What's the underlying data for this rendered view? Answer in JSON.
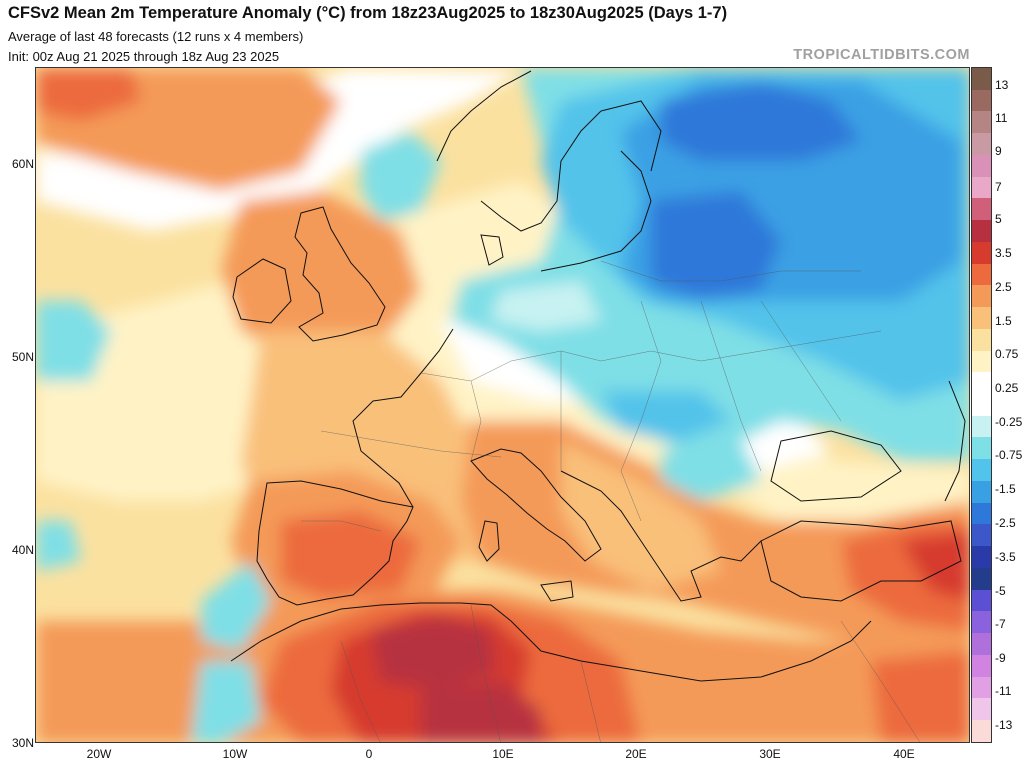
{
  "header": {
    "title": "CFSv2 Mean 2m Temperature Anomaly (°C) from 18z23Aug2025 to 18z30Aug2025 (Days 1-7)",
    "subtitle": "Average of last 48 forecasts (12 runs x 4 members)",
    "init": "Init: 00z Aug 21 2025 through 18z Aug 23 2025",
    "brand": "TROPICALTIDBITS.COM"
  },
  "axes": {
    "lat_labels": [
      "60N",
      "50N",
      "40N",
      "30N"
    ],
    "lon_labels": [
      "20W",
      "10W",
      "0",
      "10E",
      "20E",
      "30E",
      "40E"
    ]
  },
  "colorbar": {
    "labels": [
      "13",
      "11",
      "9",
      "7",
      "5",
      "3.5",
      "2.5",
      "1.5",
      "0.75",
      "0.25",
      "-0.25",
      "-0.75",
      "-1.5",
      "-2.5",
      "-3.5",
      "-5",
      "-7",
      "-9",
      "-11",
      "-13"
    ],
    "colors": [
      "#7a5a48",
      "#9a6a60",
      "#b48582",
      "#c99aa3",
      "#d991b7",
      "#e9a8c8",
      "#d0607a",
      "#b7303f",
      "#d63b2e",
      "#ec6a3d",
      "#f49a58",
      "#f9c07a",
      "#fbe1a0",
      "#fff3c6",
      "#ffffff",
      "#ffffff",
      "#c8f2f2",
      "#7fdfe6",
      "#52c3ea",
      "#3aa0e4",
      "#2e78d9",
      "#3c58c8",
      "#2a3aa8",
      "#233c8c",
      "#5b4fd3",
      "#8a62de",
      "#b070dc",
      "#d083e0",
      "#e2a0e4",
      "#efc6ea",
      "#fadbd8"
    ]
  }
}
